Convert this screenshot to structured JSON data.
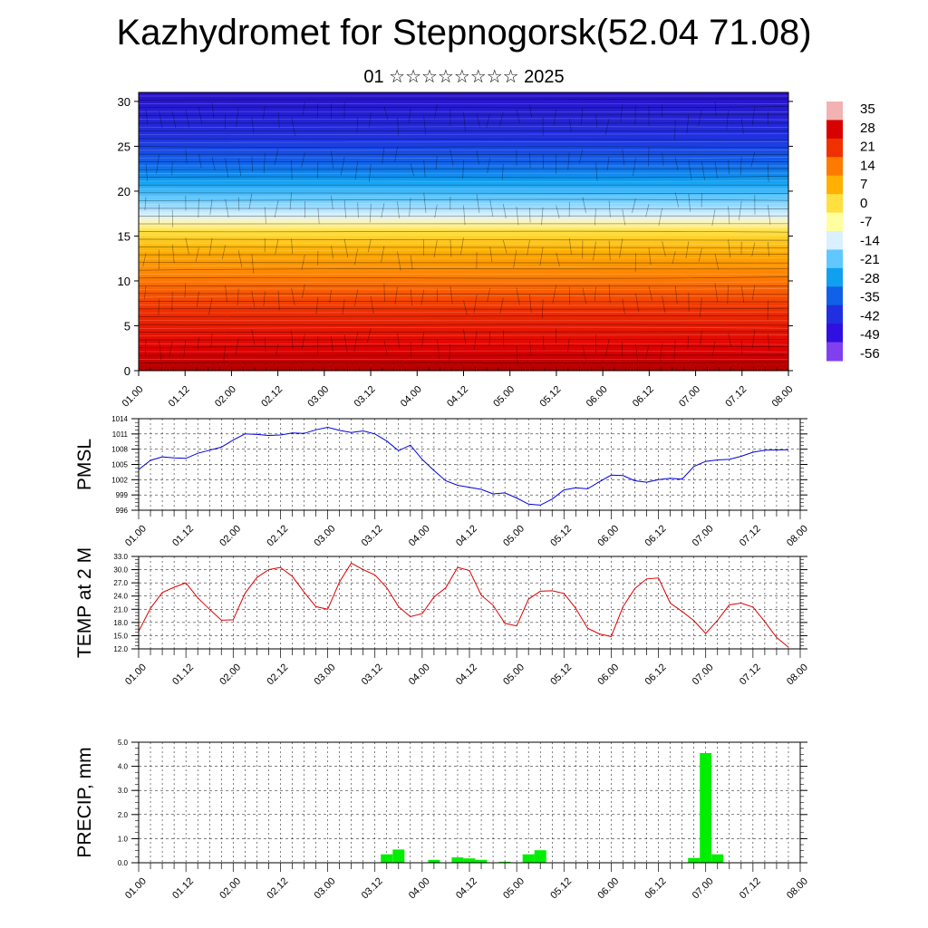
{
  "title": "Kazhydromet for Stepnogorsk(52.04 71.08)",
  "subtitle": "01 ☆☆☆☆☆☆☆☆ 2025",
  "chart_data": [
    {
      "type": "heatmap",
      "title": "",
      "xticks": [
        "01.00",
        "01.12",
        "02.00",
        "02.12",
        "03.00",
        "03.12",
        "04.00",
        "04.12",
        "05.00",
        "05.12",
        "06.00",
        "06.12",
        "07.00",
        "07.12",
        "08.00"
      ],
      "yticks": [
        "0",
        "5",
        "10",
        "15",
        "20",
        "25",
        "30"
      ],
      "ylim": [
        0,
        31
      ],
      "colorbar": {
        "labels": [
          "35",
          "28",
          "21",
          "14",
          "7",
          "0",
          "-7",
          "-14",
          "-21",
          "-28",
          "-35",
          "-42",
          "-49",
          "-56"
        ],
        "colors": [
          "#f2b2b2",
          "#d90000",
          "#f03000",
          "#ff7a00",
          "#ffb000",
          "#ffe040",
          "#ffffa0",
          "#d8f0ff",
          "#60c8ff",
          "#10a0f0",
          "#1060e8",
          "#2030e0",
          "#3010e0",
          "#8040f0"
        ]
      }
    },
    {
      "type": "line",
      "ylabel": "PMSL",
      "yticks": [
        "1014",
        "1011",
        "1008",
        "1005",
        "1002",
        "999",
        "996"
      ],
      "ylim": [
        996,
        1014
      ],
      "xticks": [
        "01.00",
        "01.12",
        "02.00",
        "02.12",
        "03.00",
        "03.12",
        "04.00",
        "04.12",
        "05.00",
        "05.12",
        "06.00",
        "06.12",
        "07.00",
        "07.12",
        "08.00"
      ],
      "x_hours": [
        0,
        3,
        6,
        9,
        12,
        15,
        18,
        21,
        24,
        27,
        30,
        33,
        36,
        39,
        42,
        45,
        48,
        51,
        54,
        57,
        60,
        63,
        66,
        69,
        72,
        75,
        78,
        81,
        84,
        87,
        90,
        93,
        96,
        99,
        102,
        105,
        108,
        111,
        114,
        117,
        120,
        123,
        126,
        129,
        132,
        135,
        138,
        141,
        144,
        147,
        150,
        153,
        156,
        159,
        165
      ],
      "values": [
        1004.0,
        1005.8,
        1006.5,
        1006.3,
        1006.2,
        1007.2,
        1007.8,
        1008.4,
        1009.8,
        1011.0,
        1010.9,
        1010.7,
        1010.8,
        1011.2,
        1011.1,
        1011.8,
        1012.3,
        1011.7,
        1011.3,
        1011.6,
        1011.0,
        1009.6,
        1007.7,
        1008.8,
        1006.0,
        1003.8,
        1001.8,
        1000.9,
        1000.5,
        1000.1,
        999.2,
        999.4,
        998.4,
        997.2,
        997.0,
        998.2,
        1000.0,
        1000.4,
        1000.2,
        1001.6,
        1002.9,
        1002.8,
        1001.8,
        1001.5,
        1002.0,
        1002.3,
        1002.1,
        1004.6,
        1005.6,
        1005.9,
        1006.0,
        1006.6,
        1007.4,
        1007.8,
        1007.9
      ]
    },
    {
      "type": "line",
      "ylabel": "TEMP at 2 M",
      "yticks": [
        "33.0",
        "30.0",
        "27.0",
        "24.0",
        "21.0",
        "18.0",
        "15.0",
        "12.0"
      ],
      "ylim": [
        12,
        33
      ],
      "xticks": [
        "01.00",
        "01.12",
        "02.00",
        "02.12",
        "03.00",
        "03.12",
        "04.00",
        "04.12",
        "05.00",
        "05.12",
        "06.00",
        "06.12",
        "07.00",
        "07.12",
        "08.00"
      ],
      "x_hours": [
        0,
        3,
        6,
        9,
        12,
        15,
        18,
        21,
        24,
        27,
        30,
        33,
        36,
        39,
        42,
        45,
        48,
        51,
        54,
        57,
        60,
        63,
        66,
        69,
        72,
        75,
        78,
        81,
        84,
        87,
        90,
        93,
        96,
        99,
        102,
        105,
        108,
        111,
        114,
        117,
        120,
        123,
        126,
        129,
        132,
        135,
        138,
        141,
        144,
        147,
        150,
        153,
        156,
        159,
        162,
        165
      ],
      "values": [
        16.0,
        21.2,
        24.8,
        26.0,
        27.0,
        23.6,
        21.0,
        18.5,
        18.6,
        24.6,
        28.2,
        30.0,
        30.5,
        28.5,
        24.9,
        21.6,
        21.0,
        27.2,
        31.5,
        30.0,
        28.8,
        25.9,
        21.6,
        19.3,
        20.0,
        23.8,
        25.9,
        30.5,
        29.8,
        24.2,
        21.9,
        17.8,
        17.2,
        23.3,
        25.1,
        25.2,
        24.6,
        21.2,
        16.7,
        15.4,
        14.8,
        21.6,
        25.7,
        27.9,
        28.1,
        22.4,
        20.5,
        18.4,
        15.5,
        18.5,
        22.0,
        22.4,
        21.5,
        18.2,
        14.6,
        12.4
      ]
    },
    {
      "type": "bar",
      "ylabel": "PRECIP, mm",
      "yticks": [
        "5.0",
        "4.0",
        "3.0",
        "2.0",
        "1.0",
        "0.0"
      ],
      "ylim": [
        0,
        5
      ],
      "xticks": [
        "01.00",
        "01.12",
        "02.00",
        "02.12",
        "03.00",
        "03.12",
        "04.00",
        "04.12",
        "05.00",
        "05.12",
        "06.00",
        "06.12",
        "07.00",
        "07.12",
        "08.00"
      ],
      "x_hours": [
        63,
        66,
        75,
        81,
        84,
        87,
        93,
        99,
        102,
        105,
        141,
        144,
        147
      ],
      "values": [
        0.35,
        0.55,
        0.12,
        0.22,
        0.18,
        0.12,
        0.04,
        0.35,
        0.52,
        0.0,
        0.2,
        4.55,
        0.35
      ],
      "color": "#00ee00"
    }
  ]
}
